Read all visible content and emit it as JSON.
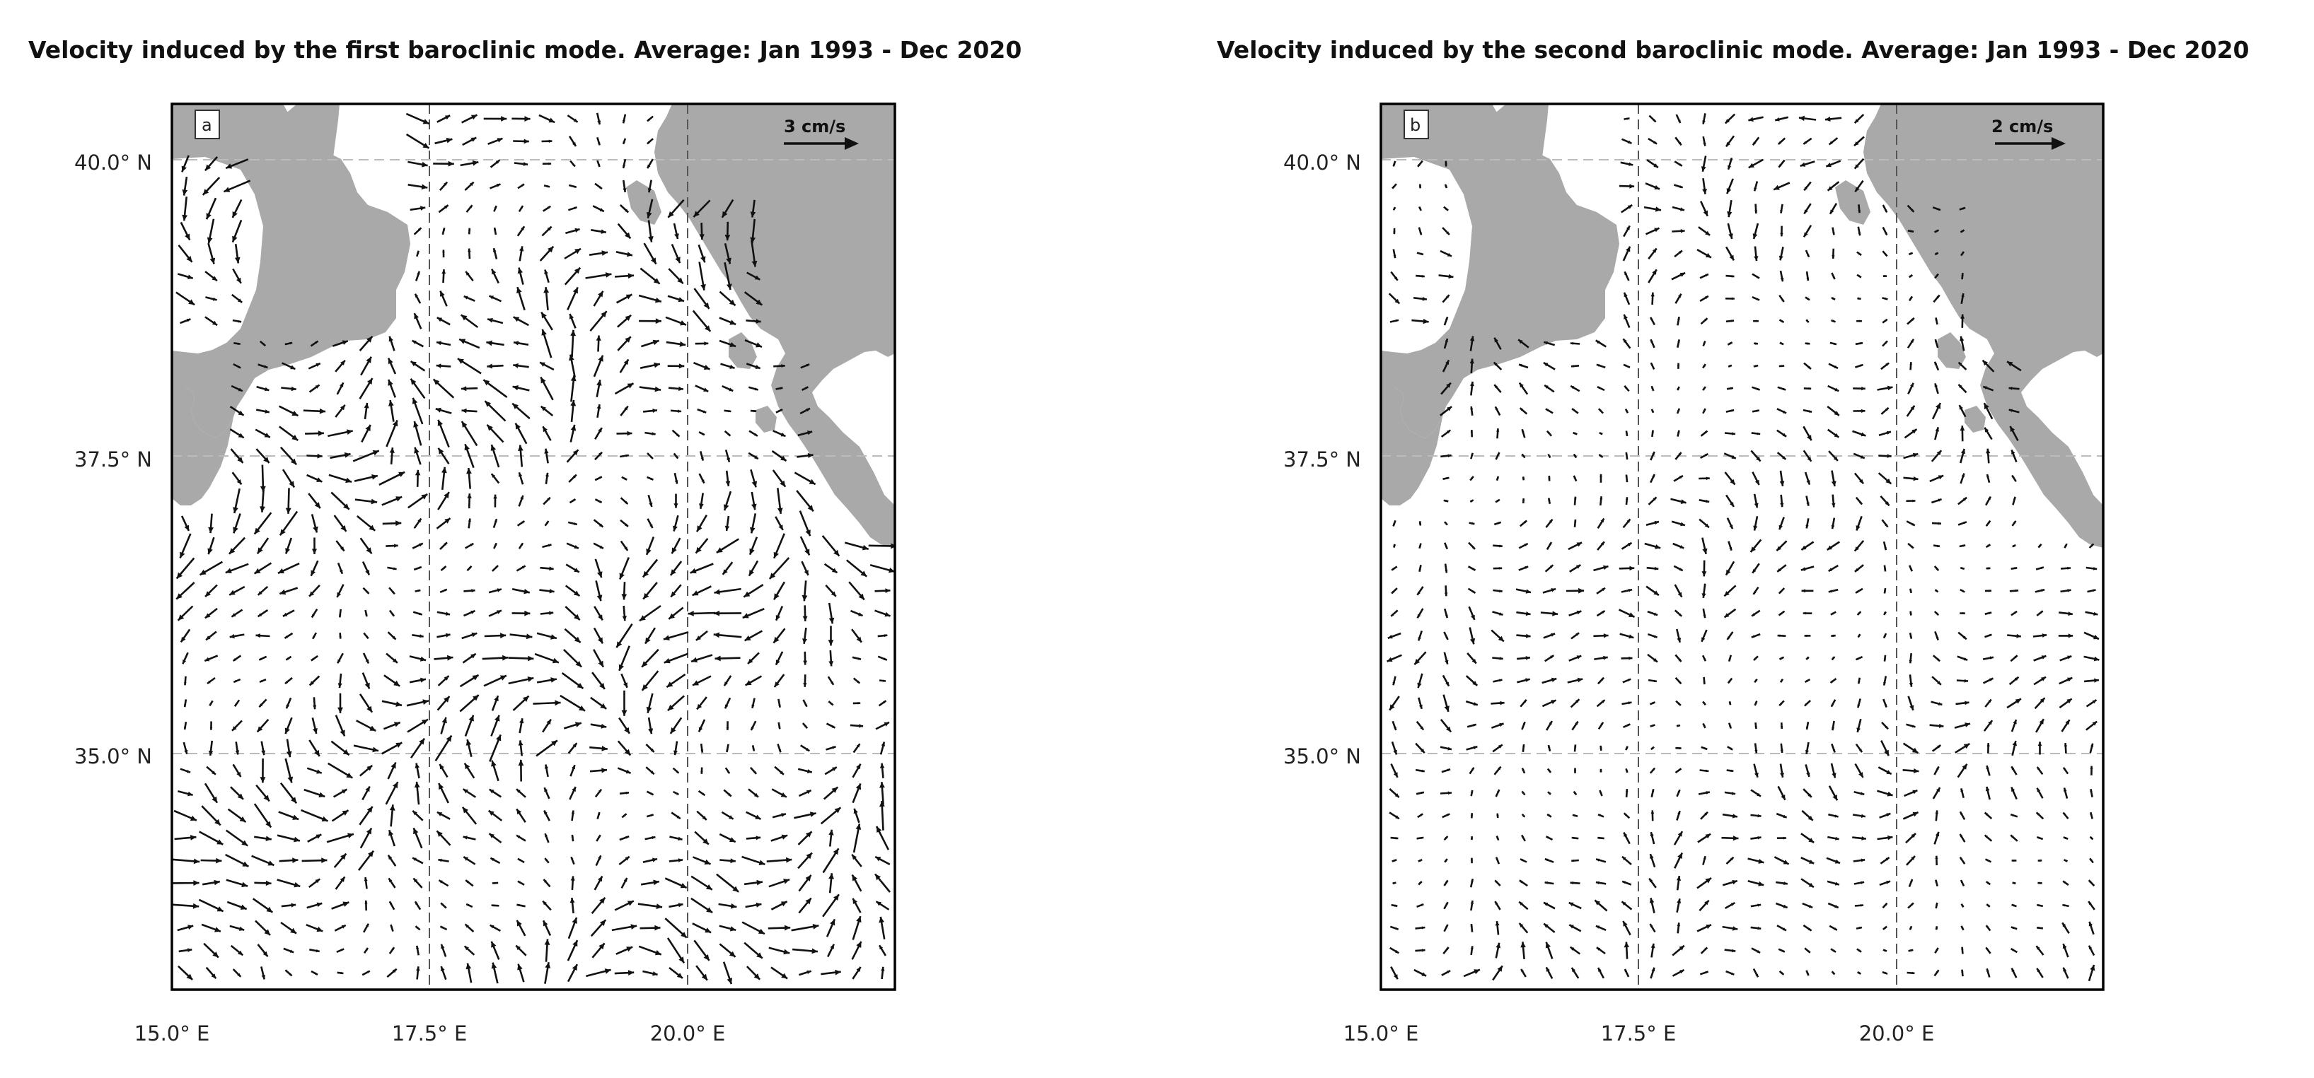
{
  "figure": {
    "colors": {
      "land": "#a9a9a9",
      "sea": "#ffffff",
      "arrow": "#111111",
      "grid": "#555555",
      "frame": "#000000"
    },
    "panels": [
      {
        "id": "a",
        "title": "Velocity induced by the first baroclinic mode. Average: Jan 1993 - Dec 2020",
        "tag": "a",
        "scale_label": "3 cm/s",
        "scale_value_cms": 3,
        "lat_ticks": [
          "40.0° N",
          "37.5° N",
          "35.0° N"
        ],
        "lon_ticks": [
          "15.0° E",
          "17.5° E",
          "20.0° E"
        ],
        "amp": 1.0
      },
      {
        "id": "b",
        "title": "Velocity induced by the second baroclinic mode. Average: Jan 1993 - Dec 2020",
        "tag": "b",
        "scale_label": "2 cm/s",
        "scale_value_cms": 2,
        "lat_ticks": [
          "40.0° N",
          "37.5° N",
          "35.0° N"
        ],
        "lon_ticks": [
          "15.0° E",
          "17.5° E",
          "20.0° E"
        ],
        "amp": 0.6
      }
    ]
  }
}
